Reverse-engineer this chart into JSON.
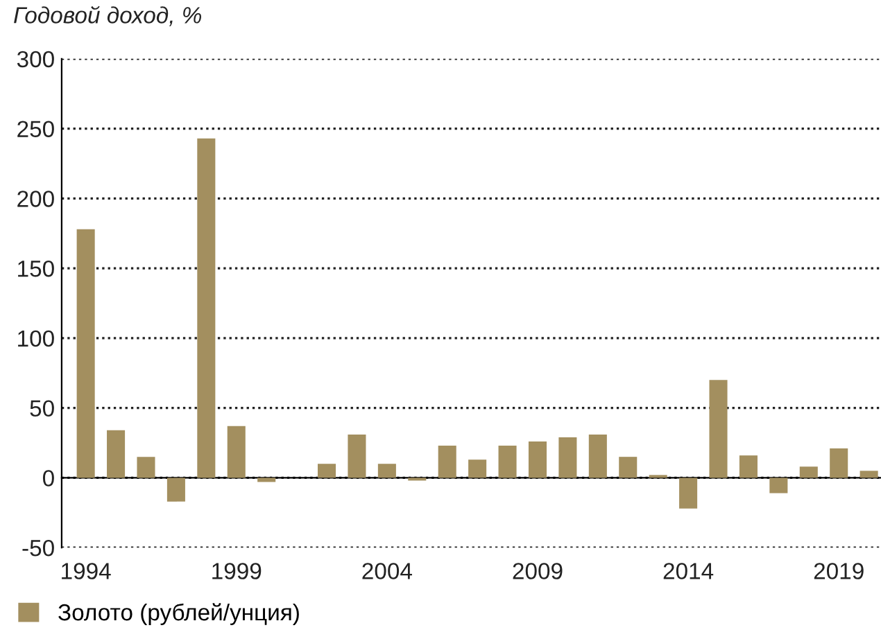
{
  "chart_data": {
    "type": "bar",
    "ylabel": "Годовой доход, %",
    "categories": [
      "1994",
      null,
      null,
      null,
      null,
      "1999",
      null,
      null,
      null,
      null,
      "2004",
      null,
      null,
      null,
      null,
      "2009",
      null,
      null,
      null,
      null,
      "2014",
      null,
      null,
      null,
      null,
      "2019",
      null
    ],
    "series": [
      {
        "name": "Золото (рублей/унция)",
        "color": "#a38f5f",
        "values": [
          178,
          34,
          15,
          -17,
          243,
          37,
          -3,
          0,
          10,
          31,
          10,
          -2,
          23,
          13,
          23,
          26,
          29,
          31,
          15,
          2,
          -22,
          70,
          16,
          -11,
          8,
          21,
          5
        ]
      }
    ],
    "ylim": [
      -50,
      300
    ],
    "yticks": [
      -50,
      0,
      50,
      100,
      150,
      200,
      250,
      300
    ],
    "grid": "y",
    "legend": "bottom left"
  }
}
